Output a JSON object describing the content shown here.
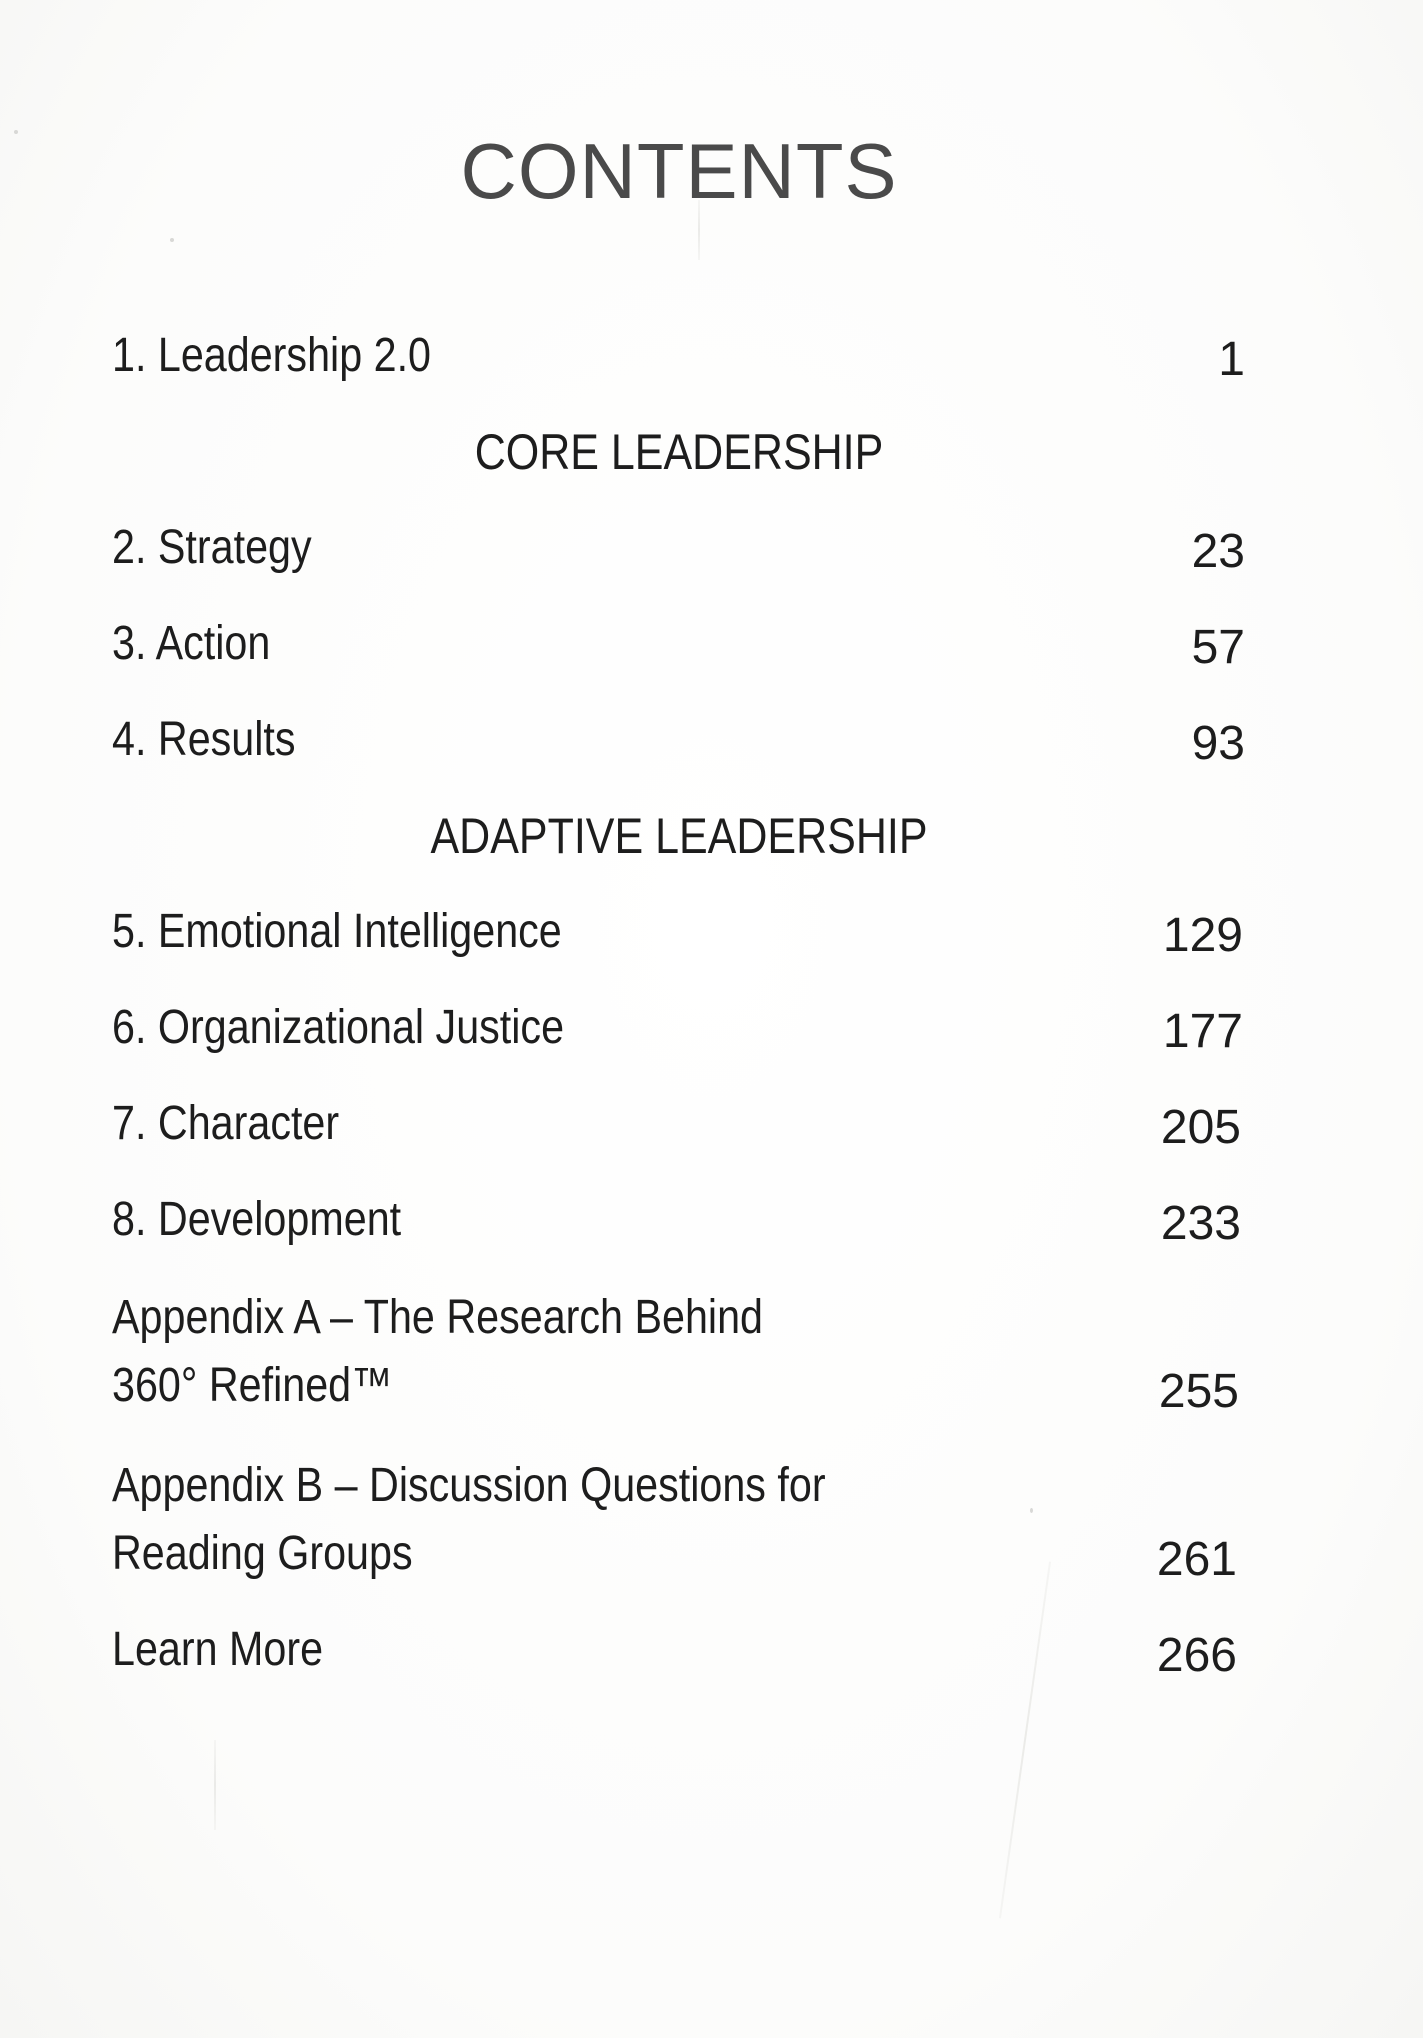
{
  "title": "CONTENTS",
  "entries": [
    {
      "type": "chapter",
      "label": "1. Leadership 2.0",
      "page": "1"
    },
    {
      "type": "section",
      "label": "CORE LEADERSHIP"
    },
    {
      "type": "chapter",
      "label": "2. Strategy",
      "page": "23"
    },
    {
      "type": "chapter",
      "label": "3. Action",
      "page": "57"
    },
    {
      "type": "chapter",
      "label": "4. Results",
      "page": "93"
    },
    {
      "type": "section",
      "label": "ADAPTIVE LEADERSHIP"
    },
    {
      "type": "chapter",
      "label": "5. Emotional Intelligence",
      "page": "129"
    },
    {
      "type": "chapter",
      "label": "6. Organizational Justice",
      "page": "177"
    },
    {
      "type": "chapter",
      "label": "7. Character",
      "page": "205"
    },
    {
      "type": "chapter",
      "label": "8. Development",
      "page": "233"
    },
    {
      "type": "chapter",
      "label_lines": [
        "Appendix A – The Research Behind",
        "360° Refined™"
      ],
      "page": "255"
    },
    {
      "type": "chapter",
      "label_lines": [
        "Appendix B – Discussion Questions for",
        "Reading Groups"
      ],
      "page": "261"
    },
    {
      "type": "chapter",
      "label": "Learn More",
      "page": "266"
    }
  ]
}
